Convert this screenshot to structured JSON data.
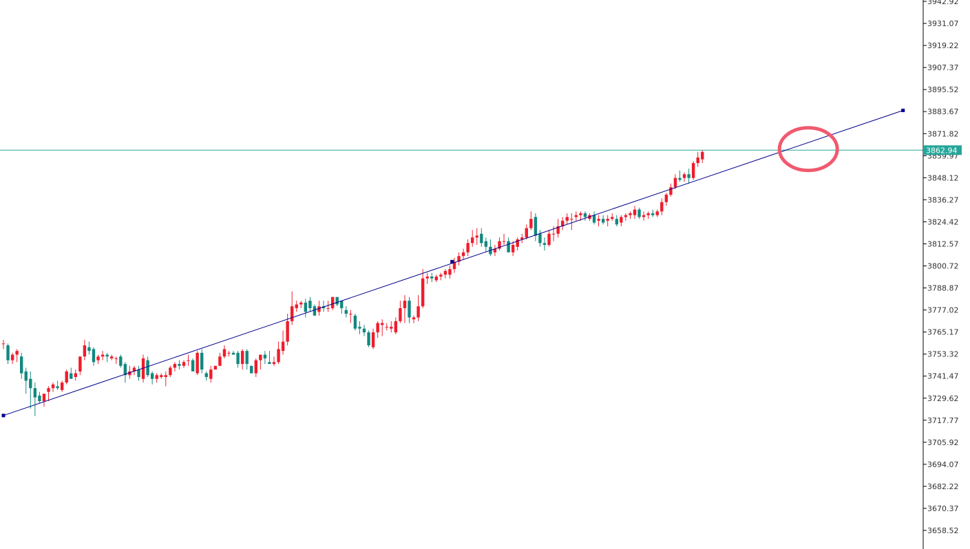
{
  "chart_data": {
    "type": "candlestick",
    "y_axis": {
      "position": "right",
      "ticks": [
        "3942.92",
        "3931.07",
        "3919.22",
        "3907.37",
        "3895.52",
        "3883.67",
        "3871.82",
        "3859.97",
        "3848.12",
        "3836.27",
        "3824.42",
        "3812.57",
        "3800.72",
        "3788.87",
        "3777.02",
        "3765.17",
        "3753.32",
        "3741.47",
        "3729.62",
        "3717.77",
        "3705.92",
        "3694.07",
        "3682.22",
        "3670.37",
        "3658.52"
      ],
      "range": [
        3647.0,
        3944.0
      ]
    },
    "current_price": {
      "label": "3862.94",
      "value": 3862.94,
      "color": "#26a69a"
    },
    "colors": {
      "up": "#ef1c2c",
      "down": "#12887f",
      "trendline": "#00008b",
      "highlight": "#f05a6e"
    },
    "trendline": {
      "points": [
        [
          0,
          3720.3
        ],
        [
          99.5,
          3803.0
        ],
        [
          199.5,
          3884.3
        ]
      ]
    },
    "highlight_circle": {
      "center_index": 178.5,
      "center_price": 3863.5
    },
    "candles": [
      [
        3759.0,
        3761.0,
        3756.0,
        3759.0
      ],
      [
        3758.0,
        3759.0,
        3748.0,
        3750.0
      ],
      [
        3750.0,
        3754.0,
        3748.0,
        3753.0
      ],
      [
        3753.0,
        3756.0,
        3749.0,
        3755.0
      ],
      [
        3752.0,
        3754.0,
        3740.0,
        3743.0
      ],
      [
        3744.0,
        3746.0,
        3732.0,
        3739.0
      ],
      [
        3740.0,
        3744.0,
        3724.0,
        3735.0
      ],
      [
        3735.0,
        3738.0,
        3720.0,
        3730.0
      ],
      [
        3731.0,
        3733.0,
        3727.0,
        3728.0
      ],
      [
        3728.0,
        3732.0,
        3725.0,
        3732.0
      ],
      [
        3733.0,
        3736.0,
        3728.0,
        3735.0
      ],
      [
        3735.0,
        3738.0,
        3733.0,
        3737.0
      ],
      [
        3736.0,
        3739.0,
        3734.0,
        3735.0
      ],
      [
        3734.0,
        3739.0,
        3733.0,
        3738.0
      ],
      [
        3738.0,
        3745.0,
        3737.0,
        3744.0
      ],
      [
        3743.0,
        3746.0,
        3740.0,
        3740.0
      ],
      [
        3741.0,
        3745.0,
        3739.0,
        3743.0
      ],
      [
        3744.0,
        3752.0,
        3742.0,
        3752.0
      ],
      [
        3752.0,
        3761.0,
        3750.0,
        3758.0
      ],
      [
        3757.0,
        3760.0,
        3753.0,
        3755.0
      ],
      [
        3756.0,
        3757.0,
        3747.0,
        3749.0
      ],
      [
        3750.0,
        3753.0,
        3748.0,
        3752.0
      ],
      [
        3752.0,
        3755.0,
        3750.0,
        3753.0
      ],
      [
        3753.0,
        3754.0,
        3749.0,
        3752.0
      ],
      [
        3751.0,
        3753.0,
        3750.0,
        3752.0
      ],
      [
        3751.0,
        3752.0,
        3748.0,
        3751.0
      ],
      [
        3752.0,
        3753.0,
        3746.0,
        3747.0
      ],
      [
        3748.0,
        3749.0,
        3738.0,
        3742.0
      ],
      [
        3742.0,
        3747.0,
        3740.0,
        3744.0
      ],
      [
        3744.0,
        3747.0,
        3742.0,
        3746.0
      ],
      [
        3745.0,
        3747.0,
        3739.0,
        3741.0
      ],
      [
        3740.0,
        3753.0,
        3738.0,
        3751.0
      ],
      [
        3750.0,
        3752.0,
        3741.0,
        3742.0
      ],
      [
        3743.0,
        3744.0,
        3737.0,
        3740.0
      ],
      [
        3740.0,
        3743.0,
        3738.0,
        3742.0
      ],
      [
        3741.0,
        3743.0,
        3740.0,
        3742.0
      ],
      [
        3741.0,
        3744.0,
        3736.0,
        3742.0
      ],
      [
        3742.0,
        3747.0,
        3741.0,
        3746.0
      ],
      [
        3746.0,
        3749.0,
        3744.0,
        3748.0
      ],
      [
        3748.0,
        3750.0,
        3745.0,
        3747.0
      ],
      [
        3747.0,
        3750.0,
        3746.0,
        3749.0
      ],
      [
        3750.0,
        3753.0,
        3747.0,
        3750.0
      ],
      [
        3750.0,
        3751.0,
        3744.0,
        3744.0
      ],
      [
        3743.0,
        3755.0,
        3742.0,
        3754.0
      ],
      [
        3754.0,
        3756.0,
        3743.0,
        3745.0
      ],
      [
        3743.0,
        3744.0,
        3739.0,
        3741.0
      ],
      [
        3740.0,
        3747.0,
        3738.0,
        3745.0
      ],
      [
        3745.0,
        3747.0,
        3745.0,
        3747.0
      ],
      [
        3747.0,
        3754.0,
        3747.0,
        3752.0
      ],
      [
        3752.0,
        3758.0,
        3751.0,
        3756.0
      ],
      [
        3754.0,
        3755.0,
        3752.0,
        3754.0
      ],
      [
        3754.0,
        3755.0,
        3753.0,
        3753.0
      ],
      [
        3754.0,
        3755.0,
        3746.0,
        3748.0
      ],
      [
        3748.0,
        3756.0,
        3745.0,
        3755.0
      ],
      [
        3755.0,
        3756.0,
        3745.0,
        3748.0
      ],
      [
        3747.0,
        3747.0,
        3743.0,
        3743.0
      ],
      [
        3743.0,
        3751.0,
        3741.0,
        3750.0
      ],
      [
        3750.0,
        3752.0,
        3745.0,
        3753.0
      ],
      [
        3753.0,
        3755.0,
        3748.0,
        3751.0
      ],
      [
        3749.0,
        3755.0,
        3748.0,
        3748.0
      ],
      [
        3748.0,
        3752.0,
        3747.0,
        3749.0
      ],
      [
        3749.0,
        3760.0,
        3748.0,
        3756.0
      ],
      [
        3755.0,
        3766.0,
        3753.0,
        3760.0
      ],
      [
        3760.0,
        3775.0,
        3758.0,
        3771.0
      ],
      [
        3771.0,
        3787.0,
        3769.0,
        3779.0
      ],
      [
        3778.0,
        3782.0,
        3776.0,
        3780.0
      ],
      [
        3780.0,
        3782.0,
        3778.0,
        3781.0
      ],
      [
        3781.0,
        3783.0,
        3773.0,
        3776.0
      ],
      [
        3782.0,
        3784.0,
        3776.0,
        3778.0
      ],
      [
        3779.0,
        3780.0,
        3774.0,
        3774.0
      ],
      [
        3776.0,
        3782.0,
        3774.0,
        3779.0
      ],
      [
        3779.0,
        3782.0,
        3776.0,
        3778.0
      ],
      [
        3778.0,
        3782.0,
        3776.0,
        3778.0
      ],
      [
        3778.0,
        3784.0,
        3777.0,
        3784.0
      ],
      [
        3784.0,
        3784.0,
        3779.0,
        3780.0
      ],
      [
        3782.0,
        3782.0,
        3775.0,
        3778.0
      ],
      [
        3777.0,
        3779.0,
        3773.0,
        3775.0
      ],
      [
        3775.0,
        3777.0,
        3770.0,
        3775.0
      ],
      [
        3774.0,
        3775.0,
        3766.0,
        3767.0
      ],
      [
        3768.0,
        3771.0,
        3764.0,
        3767.0
      ],
      [
        3767.0,
        3769.0,
        3763.0,
        3765.0
      ],
      [
        3765.0,
        3766.0,
        3757.0,
        3758.0
      ],
      [
        3757.0,
        3767.0,
        3756.0,
        3765.0
      ],
      [
        3765.0,
        3771.0,
        3762.0,
        3770.0
      ],
      [
        3769.0,
        3772.0,
        3763.0,
        3770.0
      ],
      [
        3768.0,
        3770.0,
        3766.0,
        3768.0
      ],
      [
        3767.0,
        3771.0,
        3765.0,
        3768.0
      ],
      [
        3765.0,
        3773.0,
        3764.0,
        3771.0
      ],
      [
        3771.0,
        3782.0,
        3770.0,
        3778.0
      ],
      [
        3778.0,
        3785.0,
        3770.0,
        3782.0
      ],
      [
        3782.0,
        3784.0,
        3770.0,
        3773.0
      ],
      [
        3772.0,
        3774.0,
        3770.0,
        3773.0
      ],
      [
        3773.0,
        3785.0,
        3771.0,
        3779.0
      ],
      [
        3779.0,
        3799.0,
        3778.0,
        3794.0
      ],
      [
        3794.0,
        3797.0,
        3791.0,
        3795.0
      ],
      [
        3795.0,
        3797.0,
        3792.0,
        3794.0
      ],
      [
        3793.0,
        3796.0,
        3792.0,
        3795.0
      ],
      [
        3795.0,
        3797.0,
        3793.0,
        3796.0
      ],
      [
        3796.0,
        3799.0,
        3794.0,
        3798.0
      ],
      [
        3796.0,
        3801.0,
        3794.0,
        3799.0
      ],
      [
        3799.0,
        3805.0,
        3797.0,
        3803.0
      ],
      [
        3803.0,
        3808.0,
        3801.0,
        3806.0
      ],
      [
        3806.0,
        3810.0,
        3804.0,
        3808.0
      ],
      [
        3808.0,
        3815.0,
        3806.0,
        3813.0
      ],
      [
        3813.0,
        3820.0,
        3811.0,
        3816.0
      ],
      [
        3816.0,
        3821.0,
        3812.0,
        3817.0
      ],
      [
        3818.0,
        3821.0,
        3811.0,
        3813.0
      ],
      [
        3814.0,
        3816.0,
        3808.0,
        3811.0
      ],
      [
        3811.0,
        3815.0,
        3806.0,
        3807.0
      ],
      [
        3808.0,
        3812.0,
        3806.0,
        3810.0
      ],
      [
        3810.0,
        3816.0,
        3809.0,
        3814.0
      ],
      [
        3814.0,
        3818.0,
        3812.0,
        3814.0
      ],
      [
        3814.0,
        3816.0,
        3808.0,
        3808.0
      ],
      [
        3808.0,
        3814.0,
        3806.0,
        3812.0
      ],
      [
        3811.0,
        3816.0,
        3809.0,
        3815.0
      ],
      [
        3815.0,
        3818.0,
        3813.0,
        3816.0
      ],
      [
        3816.0,
        3823.0,
        3815.0,
        3821.0
      ],
      [
        3821.0,
        3830.0,
        3820.0,
        3826.0
      ],
      [
        3827.0,
        3829.0,
        3814.0,
        3817.0
      ],
      [
        3818.0,
        3820.0,
        3811.0,
        3813.0
      ],
      [
        3813.0,
        3816.0,
        3809.0,
        3812.0
      ],
      [
        3812.0,
        3820.0,
        3811.0,
        3818.0
      ],
      [
        3818.0,
        3822.0,
        3814.0,
        3818.0
      ],
      [
        3818.0,
        3826.0,
        3816.0,
        3822.0
      ],
      [
        3822.0,
        3827.0,
        3820.0,
        3825.0
      ],
      [
        3825.0,
        3829.0,
        3823.0,
        3827.0
      ],
      [
        3826.0,
        3829.0,
        3820.0,
        3826.0
      ],
      [
        3827.0,
        3830.0,
        3825.0,
        3828.0
      ],
      [
        3828.0,
        3830.0,
        3825.0,
        3829.0
      ],
      [
        3829.0,
        3830.0,
        3825.0,
        3827.0
      ],
      [
        3826.0,
        3829.0,
        3825.0,
        3828.0
      ],
      [
        3828.0,
        3830.0,
        3823.0,
        3824.0
      ],
      [
        3825.0,
        3828.0,
        3822.0,
        3826.0
      ],
      [
        3826.0,
        3828.0,
        3823.0,
        3824.0
      ],
      [
        3825.0,
        3828.0,
        3822.0,
        3826.0
      ],
      [
        3826.0,
        3829.0,
        3825.0,
        3827.0
      ],
      [
        3826.0,
        3828.0,
        3822.0,
        3823.0
      ],
      [
        3824.0,
        3828.0,
        3822.0,
        3827.0
      ],
      [
        3827.0,
        3829.0,
        3825.0,
        3828.0
      ],
      [
        3828.0,
        3830.0,
        3826.0,
        3829.0
      ],
      [
        3828.0,
        3833.0,
        3826.0,
        3831.0
      ],
      [
        3831.0,
        3832.0,
        3826.0,
        3827.0
      ],
      [
        3827.0,
        3830.0,
        3825.0,
        3828.0
      ],
      [
        3828.0,
        3830.0,
        3826.0,
        3829.0
      ],
      [
        3829.0,
        3831.0,
        3827.0,
        3828.0
      ],
      [
        3828.0,
        3831.0,
        3827.0,
        3830.0
      ],
      [
        3830.0,
        3837.0,
        3828.0,
        3835.0
      ],
      [
        3835.0,
        3840.0,
        3833.0,
        3839.0
      ],
      [
        3839.0,
        3845.0,
        3838.0,
        3843.0
      ],
      [
        3843.0,
        3850.0,
        3842.0,
        3848.0
      ],
      [
        3848.0,
        3852.0,
        3846.0,
        3847.0
      ],
      [
        3848.0,
        3851.0,
        3846.0,
        3850.0
      ],
      [
        3850.0,
        3853.0,
        3845.0,
        3848.0
      ],
      [
        3848.0,
        3857.0,
        3847.0,
        3856.0
      ],
      [
        3856.0,
        3862.0,
        3854.0,
        3859.0
      ],
      [
        3858.0,
        3863.0,
        3856.0,
        3862.0
      ]
    ]
  }
}
